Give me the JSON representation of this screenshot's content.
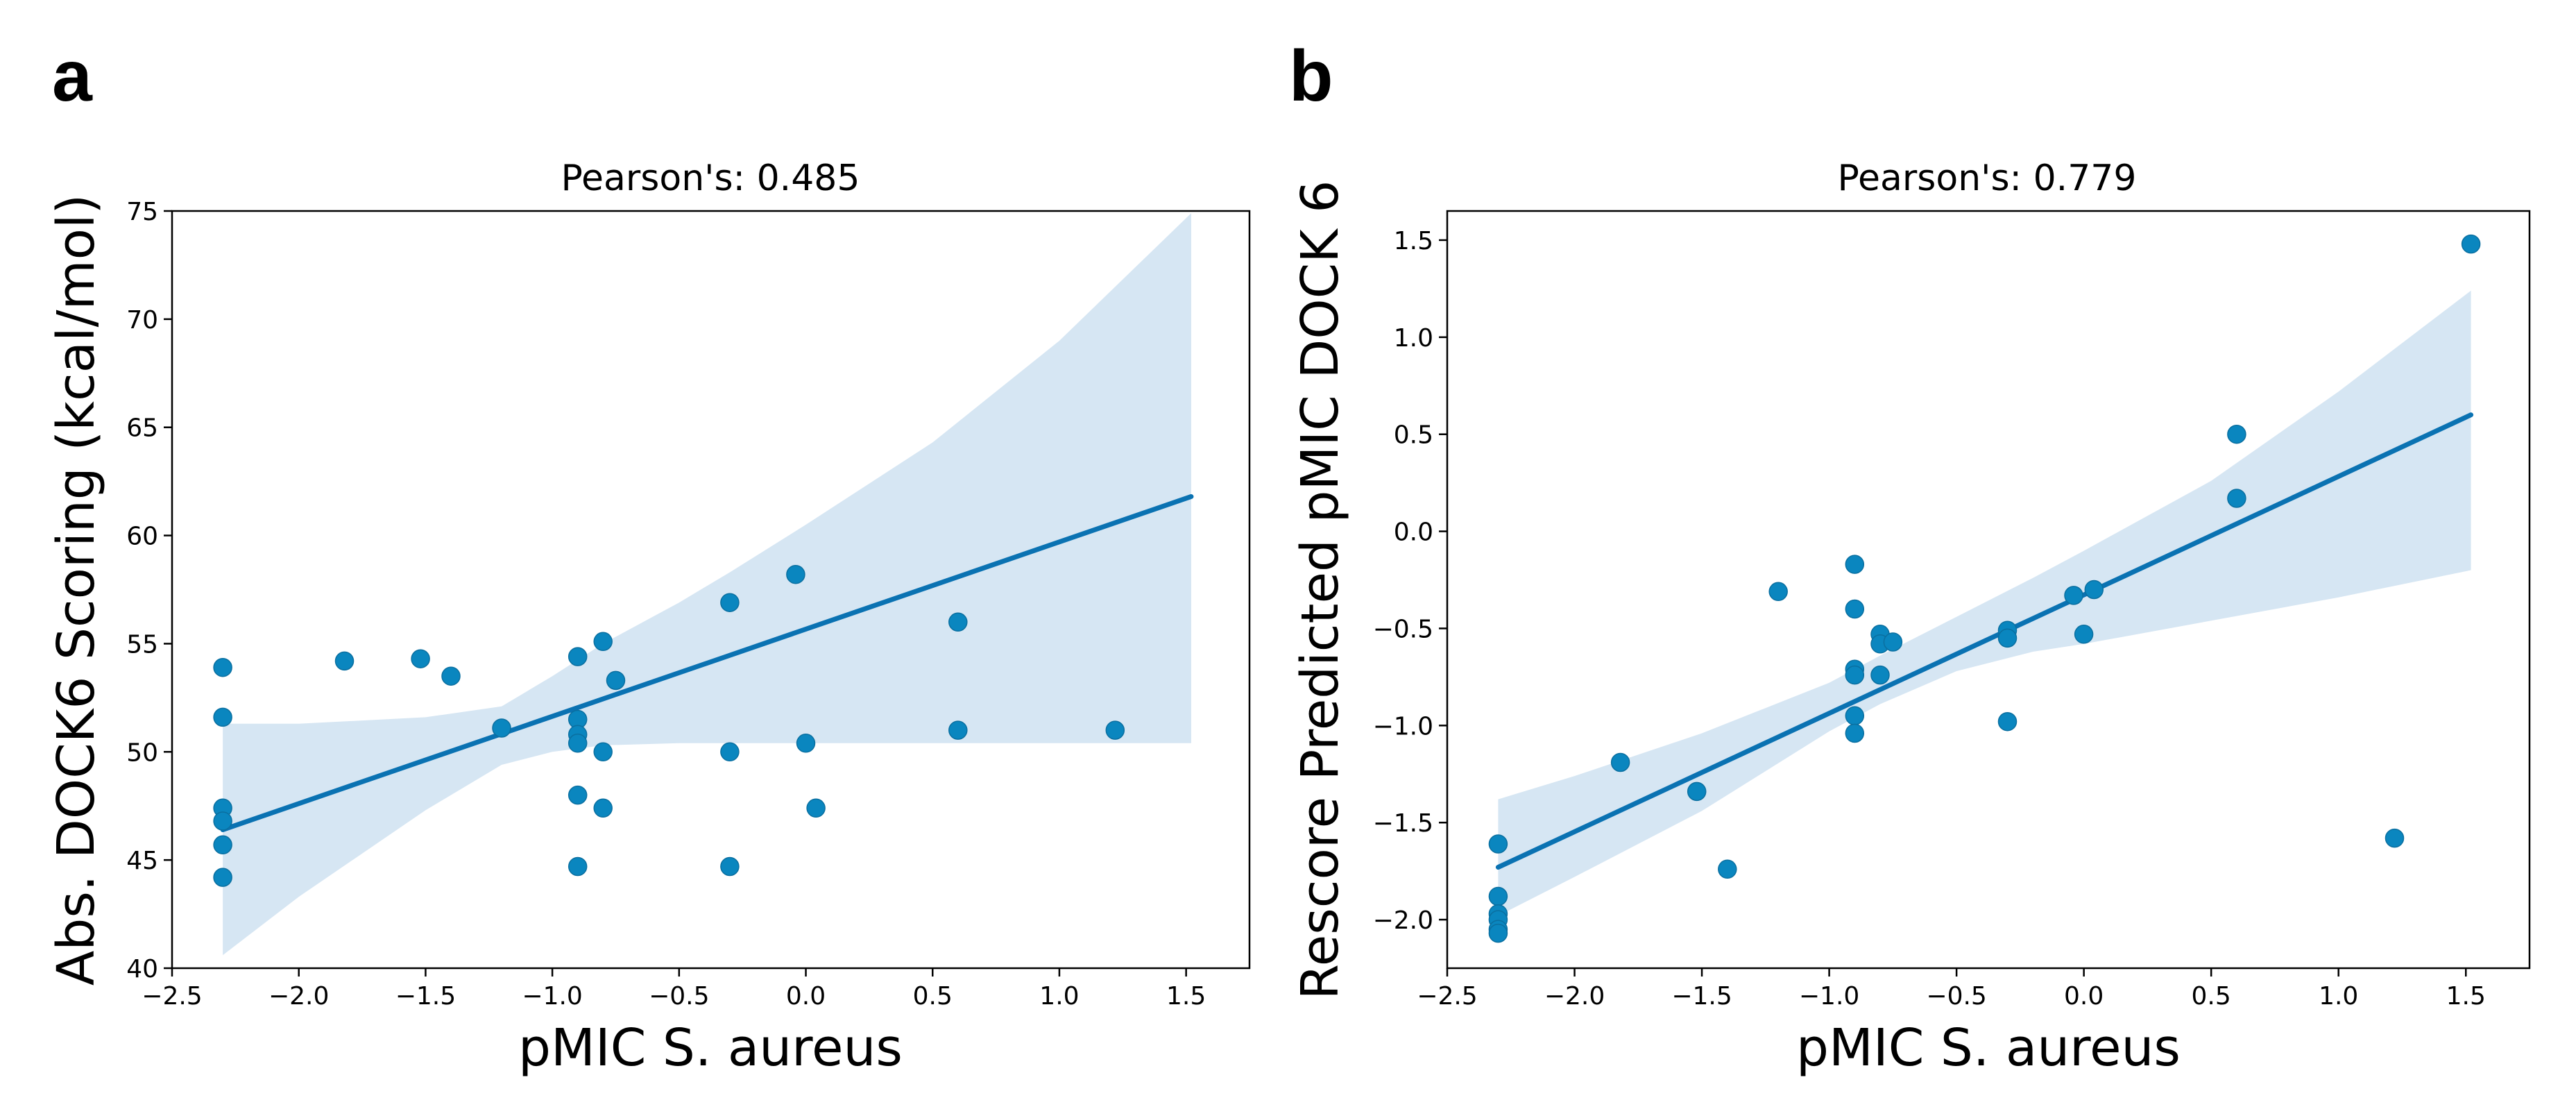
{
  "chart_data": [
    {
      "panel": "a",
      "type": "scatter",
      "title": "Pearson's: 0.485",
      "xlabel": "pMIC S. aureus",
      "ylabel": "Abs. DOCK6 Scoring (kcal/mol)",
      "xlim": [
        -2.5,
        1.75
      ],
      "ylim": [
        40,
        75
      ],
      "xticks": [
        -2.5,
        -2.0,
        -1.5,
        -1.0,
        -0.5,
        0.0,
        0.5,
        1.0,
        1.5
      ],
      "xtick_labels": [
        "−2.5",
        "−2.0",
        "−1.5",
        "−1.0",
        "−0.5",
        "0.0",
        "0.5",
        "1.0",
        "1.5"
      ],
      "yticks": [
        40,
        45,
        50,
        55,
        60,
        65,
        70,
        75
      ],
      "ytick_labels": [
        "40",
        "45",
        "50",
        "55",
        "60",
        "65",
        "70",
        "75"
      ],
      "grid": false,
      "points": [
        [
          -2.3,
          53.9
        ],
        [
          -2.3,
          51.6
        ],
        [
          -2.3,
          47.4
        ],
        [
          -2.3,
          46.8
        ],
        [
          -2.3,
          45.7
        ],
        [
          -2.3,
          44.2
        ],
        [
          -1.82,
          54.2
        ],
        [
          -1.52,
          54.3
        ],
        [
          -1.4,
          53.5
        ],
        [
          -1.2,
          51.1
        ],
        [
          -0.9,
          54.4
        ],
        [
          -0.9,
          51.5
        ],
        [
          -0.9,
          50.8
        ],
        [
          -0.9,
          50.4
        ],
        [
          -0.9,
          48.0
        ],
        [
          -0.9,
          44.7
        ],
        [
          -0.8,
          55.1
        ],
        [
          -0.8,
          50.0
        ],
        [
          -0.8,
          47.4
        ],
        [
          -0.75,
          53.3
        ],
        [
          -0.3,
          56.9
        ],
        [
          -0.3,
          50.0
        ],
        [
          -0.3,
          44.7
        ],
        [
          -0.04,
          58.2
        ],
        [
          0.0,
          50.4
        ],
        [
          0.04,
          47.4
        ],
        [
          0.6,
          56.0
        ],
        [
          0.6,
          51.0
        ],
        [
          1.22,
          51.0
        ]
      ],
      "regression": {
        "x": [
          -2.3,
          1.52
        ],
        "y": [
          46.4,
          61.8
        ]
      },
      "ci_band": {
        "x": [
          -2.3,
          -2.0,
          -1.5,
          -1.2,
          -1.0,
          -0.8,
          -0.5,
          -0.3,
          0.0,
          0.5,
          1.0,
          1.52
        ],
        "upper": [
          51.3,
          51.3,
          51.6,
          52.1,
          53.5,
          55.0,
          56.9,
          58.3,
          60.5,
          64.3,
          69.0,
          74.9
        ],
        "lower": [
          40.6,
          43.3,
          47.3,
          49.4,
          50.0,
          50.3,
          50.4,
          50.4,
          50.4,
          50.4,
          50.4,
          50.4
        ]
      }
    },
    {
      "panel": "b",
      "type": "scatter",
      "title": "Pearson's: 0.779",
      "xlabel": "pMIC S. aureus",
      "ylabel": "Rescore Predicted pMIC DOCK 6",
      "xlim": [
        -2.5,
        1.75
      ],
      "ylim": [
        -2.25,
        1.65
      ],
      "xticks": [
        -2.5,
        -2.0,
        -1.5,
        -1.0,
        -0.5,
        0.0,
        0.5,
        1.0,
        1.5
      ],
      "xtick_labels": [
        "−2.5",
        "−2.0",
        "−1.5",
        "−1.0",
        "−0.5",
        "0.0",
        "0.5",
        "1.0",
        "1.5"
      ],
      "yticks": [
        -2.0,
        -1.5,
        -1.0,
        -0.5,
        0.0,
        0.5,
        1.0,
        1.5
      ],
      "ytick_labels": [
        "−2.0",
        "−1.5",
        "−1.0",
        "−0.5",
        "0.0",
        "0.5",
        "1.0",
        "1.5"
      ],
      "grid": false,
      "points": [
        [
          -2.3,
          -1.61
        ],
        [
          -2.3,
          -1.88
        ],
        [
          -2.3,
          -1.97
        ],
        [
          -2.3,
          -2.0
        ],
        [
          -2.3,
          -2.05
        ],
        [
          -2.3,
          -2.07
        ],
        [
          -1.82,
          -1.19
        ],
        [
          -1.52,
          -1.34
        ],
        [
          -1.4,
          -1.74
        ],
        [
          -1.2,
          -0.31
        ],
        [
          -0.9,
          -0.17
        ],
        [
          -0.9,
          -0.4
        ],
        [
          -0.9,
          -0.71
        ],
        [
          -0.9,
          -0.74
        ],
        [
          -0.9,
          -0.95
        ],
        [
          -0.9,
          -1.04
        ],
        [
          -0.8,
          -0.53
        ],
        [
          -0.8,
          -0.58
        ],
        [
          -0.8,
          -0.74
        ],
        [
          -0.75,
          -0.57
        ],
        [
          -0.3,
          -0.51
        ],
        [
          -0.3,
          -0.55
        ],
        [
          -0.3,
          -0.98
        ],
        [
          -0.04,
          -0.33
        ],
        [
          0.0,
          -0.53
        ],
        [
          0.04,
          -0.3
        ],
        [
          0.6,
          0.5
        ],
        [
          0.6,
          0.17
        ],
        [
          1.22,
          -1.58
        ],
        [
          1.52,
          1.48
        ]
      ],
      "regression": {
        "x": [
          -2.3,
          1.52
        ],
        "y": [
          -1.73,
          0.6
        ]
      },
      "ci_band": {
        "x": [
          -2.3,
          -2.0,
          -1.5,
          -1.0,
          -0.8,
          -0.5,
          -0.2,
          0.0,
          0.5,
          1.0,
          1.52
        ],
        "upper": [
          -1.38,
          -1.26,
          -1.04,
          -0.78,
          -0.64,
          -0.44,
          -0.24,
          -0.1,
          0.26,
          0.72,
          1.24
        ],
        "lower": [
          -1.98,
          -1.78,
          -1.44,
          -1.03,
          -0.89,
          -0.72,
          -0.62,
          -0.58,
          -0.46,
          -0.34,
          -0.2
        ]
      }
    }
  ],
  "panel_letters": [
    "a",
    "b"
  ]
}
